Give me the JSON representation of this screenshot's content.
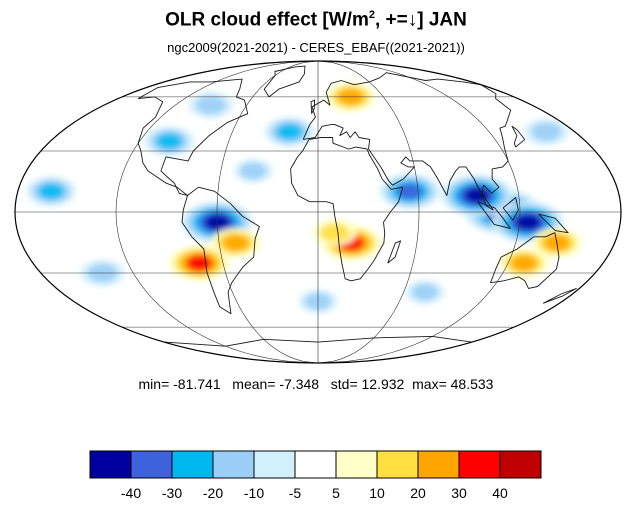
{
  "title": {
    "main": "OLR cloud effect [W/m",
    "sup": "2",
    "rest": ", +=↓]  JAN"
  },
  "subtitle": "ngc2009(2021-2021) - CERES_EBAF((2021-2021))",
  "stats": {
    "min_label": "min=",
    "min": "-81.741",
    "mean_label": "mean=",
    "mean": "-7.348",
    "std_label": "std=",
    "std": "12.932",
    "max_label": "max=",
    "max": "48.533"
  },
  "colorbar": {
    "colors": [
      "#0000a0",
      "#3d62dc",
      "#00b8f0",
      "#9ccff7",
      "#d2f0fc",
      "#ffffff",
      "#ffffc8",
      "#ffe040",
      "#ffa500",
      "#ff0000",
      "#c00000"
    ],
    "labels": [
      "-40",
      "-30",
      "-20",
      "-10",
      "-5",
      "5",
      "10",
      "20",
      "30",
      "40"
    ]
  },
  "map": {
    "projection": "mollweide",
    "variable": "OLR cloud effect difference",
    "anomalies": [
      {
        "lon": 110,
        "lat": 0,
        "value": -45
      },
      {
        "lon": 125,
        "lat": -5,
        "value": -40
      },
      {
        "lon": 95,
        "lat": 8,
        "value": -40
      },
      {
        "lon": 20,
        "lat": -15,
        "value": 30
      },
      {
        "lon": 10,
        "lat": -10,
        "value": 15
      },
      {
        "lon": -60,
        "lat": -5,
        "value": -40
      },
      {
        "lon": -50,
        "lat": -15,
        "value": 20
      },
      {
        "lon": -75,
        "lat": -25,
        "value": 30
      },
      {
        "lon": 30,
        "lat": 60,
        "value": 20
      },
      {
        "lon": 130,
        "lat": -25,
        "value": 20
      },
      {
        "lon": 145,
        "lat": -15,
        "value": 20
      },
      {
        "lon": 55,
        "lat": 10,
        "value": -30
      },
      {
        "lon": -100,
        "lat": 35,
        "value": -20
      },
      {
        "lon": -20,
        "lat": 40,
        "value": -20
      },
      {
        "lon": -160,
        "lat": 10,
        "value": -20
      },
      {
        "lon": -140,
        "lat": -30,
        "value": -15
      },
      {
        "lon": 0,
        "lat": -45,
        "value": -10
      },
      {
        "lon": -90,
        "lat": 55,
        "value": -15
      },
      {
        "lon": 160,
        "lat": 40,
        "value": -15
      },
      {
        "lon": 75,
        "lat": -40,
        "value": -10
      },
      {
        "lon": -40,
        "lat": 20,
        "value": -10
      }
    ]
  }
}
